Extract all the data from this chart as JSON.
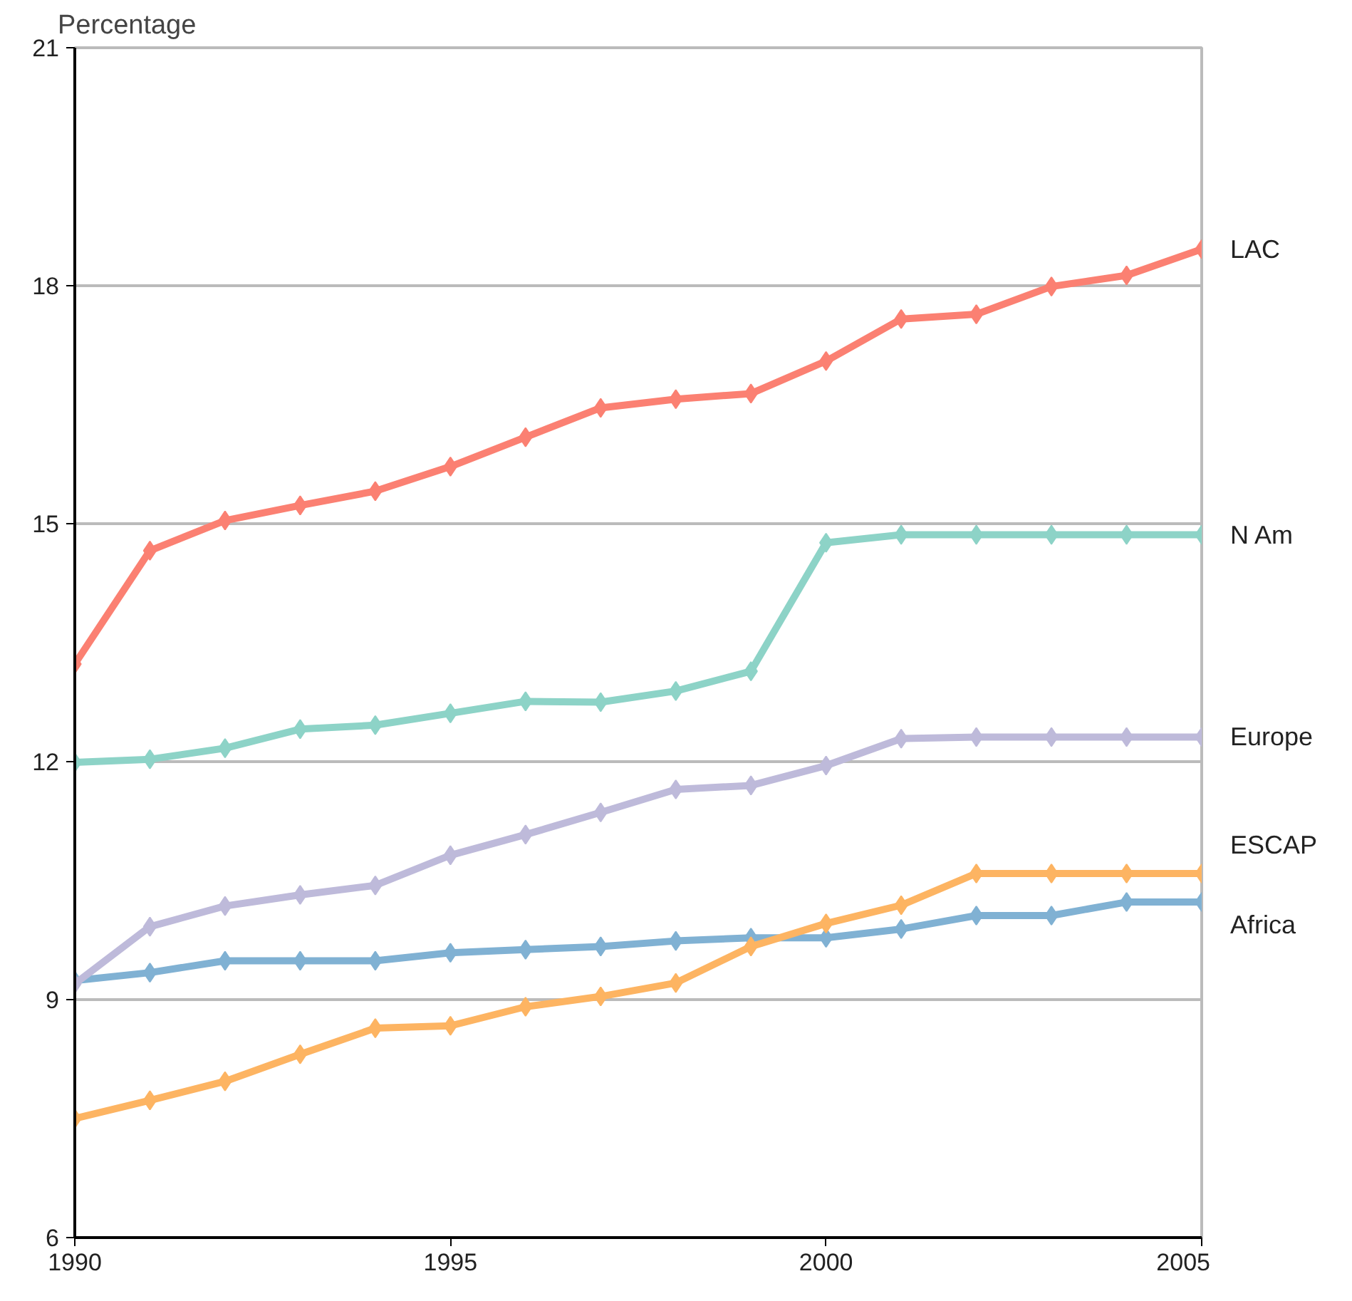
{
  "chart_data": {
    "type": "line",
    "ylabel": "Percentage",
    "x": [
      1990,
      1991,
      1992,
      1993,
      1994,
      1995,
      1996,
      1997,
      1998,
      1999,
      2000,
      2001,
      2002,
      2003,
      2004,
      2005
    ],
    "xlim": [
      1990,
      2005
    ],
    "xticks": [
      1990,
      1995,
      2000,
      2005
    ],
    "ylim": [
      6,
      21
    ],
    "yticks": [
      6,
      9,
      12,
      15,
      18,
      21
    ],
    "grid": "y",
    "marker": "diamond",
    "line_style": "solid",
    "series": [
      {
        "name": "LAC",
        "color": "#fb8072",
        "values": [
          13.23,
          14.66,
          15.04,
          15.23,
          15.41,
          15.72,
          16.09,
          16.46,
          16.57,
          16.64,
          17.05,
          17.58,
          17.64,
          17.99,
          18.13,
          18.46
        ]
      },
      {
        "name": "N Am",
        "color": "#8dd3c7",
        "values": [
          11.99,
          12.03,
          12.17,
          12.41,
          12.46,
          12.61,
          12.76,
          12.75,
          12.89,
          13.14,
          14.76,
          14.86,
          14.86,
          14.86,
          14.86,
          14.86
        ]
      },
      {
        "name": "Europe",
        "color": "#bebada",
        "values": [
          9.2,
          9.92,
          10.18,
          10.32,
          10.44,
          10.82,
          11.08,
          11.36,
          11.65,
          11.7,
          11.95,
          12.29,
          12.31,
          12.31,
          12.31,
          12.31
        ]
      },
      {
        "name": "ESCAP",
        "color": "#fdb462",
        "values": [
          7.5,
          7.73,
          7.97,
          8.31,
          8.64,
          8.67,
          8.91,
          9.04,
          9.21,
          9.67,
          9.96,
          10.19,
          10.59,
          10.59,
          10.59,
          10.59
        ]
      },
      {
        "name": "Africa",
        "color": "#80b1d3",
        "values": [
          9.24,
          9.34,
          9.49,
          9.49,
          9.49,
          9.59,
          9.63,
          9.67,
          9.74,
          9.78,
          9.78,
          9.89,
          10.06,
          10.06,
          10.23,
          10.23
        ]
      }
    ]
  }
}
